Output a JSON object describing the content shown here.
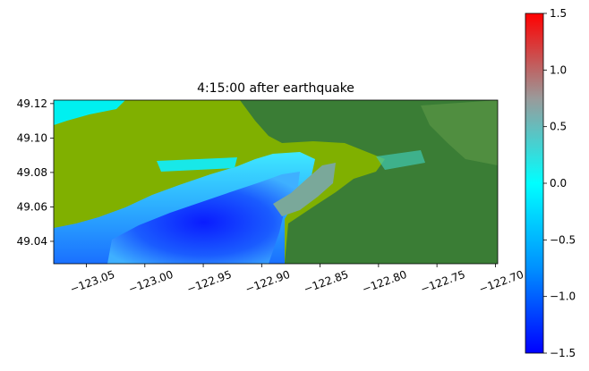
{
  "chart_data": {
    "type": "heatmap",
    "title": "4:15:00 after earthquake",
    "xlabel": "",
    "ylabel": "",
    "xlim": [
      -123.078,
      -122.698
    ],
    "ylim": [
      49.027,
      49.122
    ],
    "x_ticks": [
      {
        "value": -123.05,
        "label": "−123.05"
      },
      {
        "value": -123.0,
        "label": "−123.00"
      },
      {
        "value": -122.95,
        "label": "−122.95"
      },
      {
        "value": -122.9,
        "label": "−122.90"
      },
      {
        "value": -122.85,
        "label": "−122.85"
      },
      {
        "value": -122.8,
        "label": "−122.80"
      },
      {
        "value": -122.75,
        "label": "−122.75"
      },
      {
        "value": -122.7,
        "label": "−122.70"
      }
    ],
    "y_ticks": [
      {
        "value": 49.04,
        "label": "49.04"
      },
      {
        "value": 49.06,
        "label": "49.06"
      },
      {
        "value": 49.08,
        "label": "49.08"
      },
      {
        "value": 49.1,
        "label": "49.10"
      },
      {
        "value": 49.12,
        "label": "49.12"
      }
    ],
    "colorbar": {
      "range": [
        -1.5,
        1.5
      ],
      "ticks": [
        {
          "value": 1.5,
          "label": "1.5"
        },
        {
          "value": 1.0,
          "label": "1.0"
        },
        {
          "value": 0.5,
          "label": "0.5"
        },
        {
          "value": 0.0,
          "label": "0.0"
        },
        {
          "value": -0.5,
          "label": "−0.5"
        },
        {
          "value": -1.0,
          "label": "−1.0"
        },
        {
          "value": -1.5,
          "label": "−1.5"
        }
      ],
      "colors": [
        "#0000ff",
        "#0090ff",
        "#00ffff",
        "#9a9a9a",
        "#ff0000"
      ]
    },
    "map_colors": {
      "dry_land_high": "#3a7d35",
      "dry_land_low": "#80b000",
      "inundated": "#00ffff",
      "deep_water": "#0a2cff"
    }
  }
}
